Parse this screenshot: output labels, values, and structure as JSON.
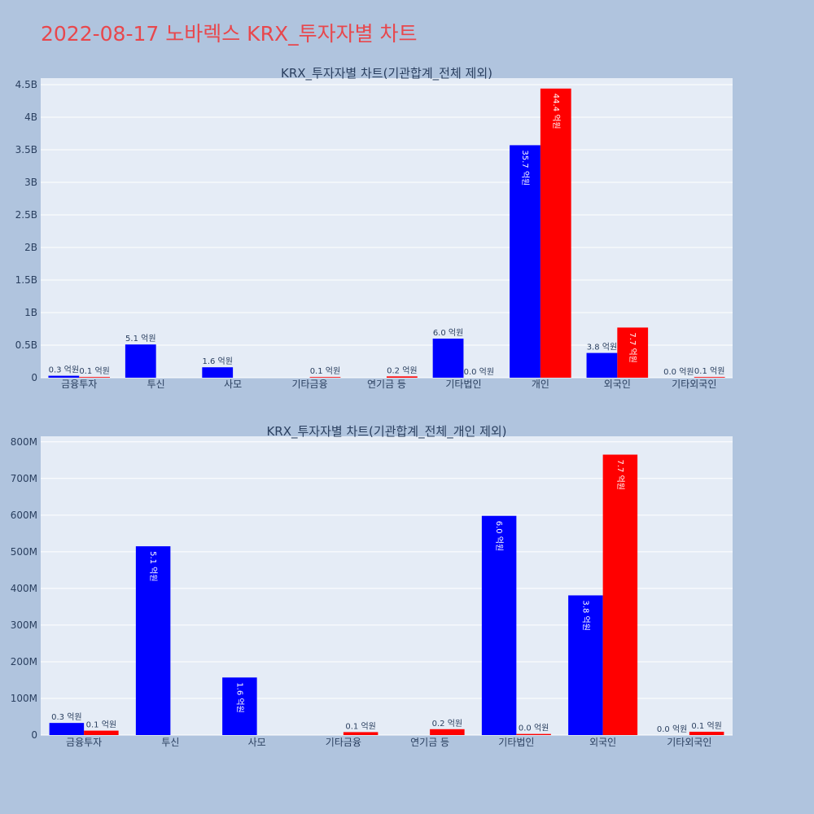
{
  "page": {
    "title": "2022-08-17 노바렉스 KRX_투자자별 차트",
    "background": "#b0c4de",
    "title_color": "#e8474c"
  },
  "chart_data": [
    {
      "type": "bar",
      "title": "KRX_투자자별 차트(기관합계_전체 제외)",
      "xlabel": "",
      "ylabel": "",
      "categories": [
        "금융투자",
        "투신",
        "사모",
        "기타금융",
        "연기금 등",
        "기타법인",
        "개인",
        "외국인",
        "기타외국인"
      ],
      "ylim": [
        0,
        4.6
      ],
      "y_unit": "B",
      "yticks": [
        0,
        0.5,
        1,
        1.5,
        2,
        2.5,
        3,
        3.5,
        4,
        4.5
      ],
      "ytick_labels": [
        "0",
        "0.5B",
        "1B",
        "1.5B",
        "2B",
        "2.5B",
        "3B",
        "3.5B",
        "4B",
        "4.5B"
      ],
      "grid": true,
      "series": [
        {
          "color": "#0000ff",
          "values": [
            0.03,
            0.51,
            0.16,
            0.0,
            0.0,
            0.6,
            3.57,
            0.38,
            0.0
          ],
          "labels": [
            "0.3 억원",
            "5.1 억원",
            "1.6 억원",
            "",
            "",
            "6.0 억원",
            "35.7 억원",
            "3.8 억원",
            "0.0 억원"
          ]
        },
        {
          "color": "#ff0000",
          "values": [
            0.01,
            0.0,
            0.0,
            0.01,
            0.02,
            0.0,
            4.44,
            0.77,
            0.01
          ],
          "labels": [
            "0.1 억원",
            "",
            "",
            "0.1 억원",
            "0.2 억원",
            "0.0 억원",
            "44.4 억원",
            "7.7 억원",
            "0.1 억원"
          ]
        }
      ]
    },
    {
      "type": "bar",
      "title": "KRX_투자자별 차트(기관합계_전체_개인 제외)",
      "xlabel": "",
      "ylabel": "",
      "categories": [
        "금융투자",
        "투신",
        "사모",
        "기타금융",
        "연기금 등",
        "기타법인",
        "외국인",
        "기타외국인"
      ],
      "ylim": [
        0,
        815
      ],
      "y_unit": "M",
      "yticks": [
        0,
        100,
        200,
        300,
        400,
        500,
        600,
        700,
        800
      ],
      "ytick_labels": [
        "0",
        "100M",
        "200M",
        "300M",
        "400M",
        "500M",
        "600M",
        "700M",
        "800M"
      ],
      "grid": true,
      "series": [
        {
          "color": "#0000ff",
          "values": [
            33,
            515,
            157,
            0,
            0,
            598,
            381,
            0
          ],
          "labels": [
            "0.3 억원",
            "5.1 억원",
            "1.6 억원",
            "",
            "",
            "6.0 억원",
            "3.8 억원",
            "0.0 억원"
          ]
        },
        {
          "color": "#ff0000",
          "values": [
            12,
            0,
            0,
            8,
            16,
            3,
            765,
            9
          ],
          "labels": [
            "0.1 억원",
            "",
            "",
            "0.1 억원",
            "0.2 억원",
            "0.0 억원",
            "7.7 억원",
            "0.1 억원"
          ]
        }
      ]
    }
  ]
}
